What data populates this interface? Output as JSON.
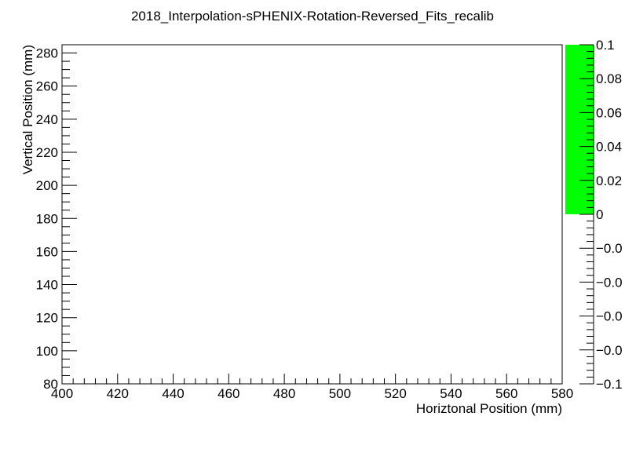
{
  "chart_data": {
    "type": "heatmap",
    "title": "2018_Interpolation-sPHENIX-Rotation-Reversed_Fits_recalib",
    "xlabel": "Horiztonal Position (mm)",
    "ylabel": "Vertical Position (mm)",
    "xlim": [
      400,
      580
    ],
    "ylim": [
      80,
      285
    ],
    "x_ticks": [
      "400",
      "420",
      "440",
      "460",
      "480",
      "500",
      "520",
      "540",
      "560",
      "580"
    ],
    "y_ticks": [
      "80",
      "100",
      "120",
      "140",
      "160",
      "180",
      "200",
      "220",
      "240",
      "260",
      "280"
    ],
    "values": [],
    "colorbar": {
      "range": [
        -0.1,
        0.1
      ],
      "ticks": [
        "0.1",
        "0.08",
        "0.06",
        "0.04",
        "0.02",
        "0",
        "−0.0",
        "−0.0",
        "−0.0",
        "−0.0",
        "−0.1"
      ],
      "filled_range": [
        0,
        0.1
      ],
      "fill_color": "#00ff00"
    },
    "grid": false
  }
}
